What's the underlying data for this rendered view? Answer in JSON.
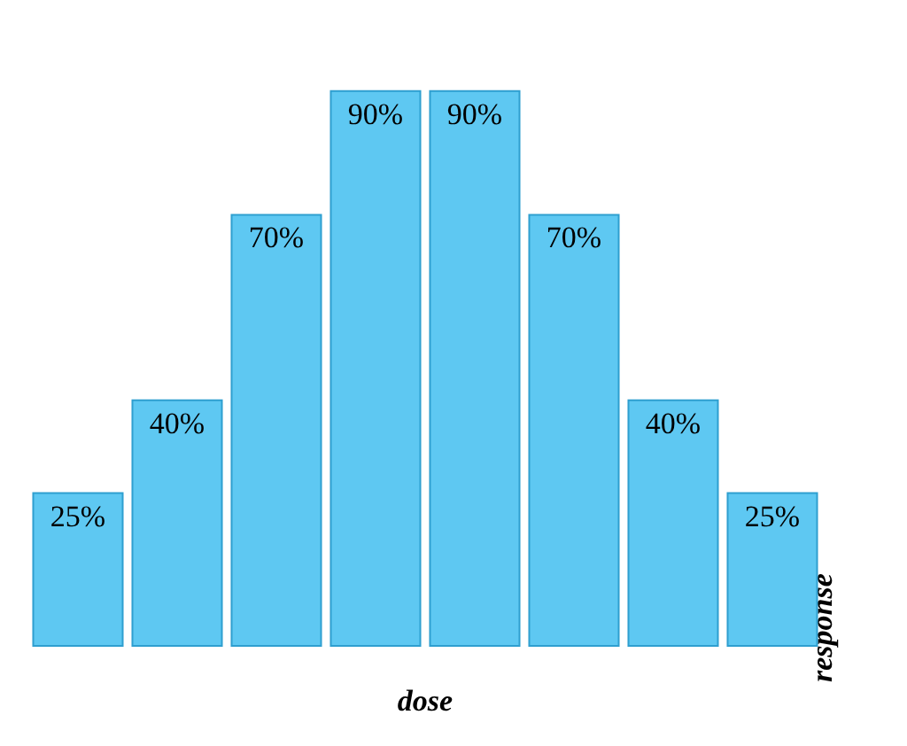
{
  "chart_data": {
    "type": "bar",
    "xlabel": "dose",
    "ylabel": "response",
    "categories": [
      null,
      null,
      null,
      null,
      null,
      null,
      null,
      null
    ],
    "values": [
      25,
      40,
      70,
      90,
      90,
      70,
      40,
      25
    ],
    "value_labels": [
      "25%",
      "40%",
      "70%",
      "90%",
      "90%",
      "70%",
      "40%",
      "25%"
    ],
    "color": "#5ec8f2",
    "grid": false
  }
}
